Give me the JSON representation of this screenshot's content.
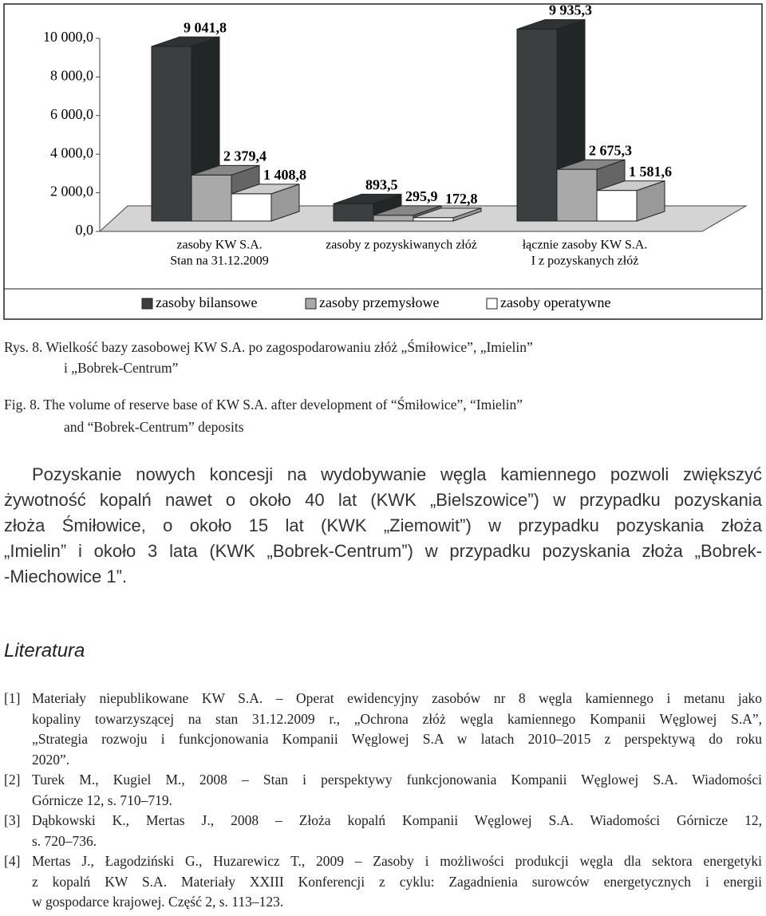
{
  "chart_data": {
    "type": "bar3d",
    "categories": [
      [
        "zasoby KW S.A.",
        "Stan na 31.12.2009"
      ],
      [
        "zasoby z pozyskiwanych złóż"
      ],
      [
        "łącznie zasoby KW S.A.",
        "I z pozyskanych złóż"
      ]
    ],
    "series": [
      {
        "name": "zasoby bilansowe",
        "color": "#3b3f3f",
        "values": [
          9041.8,
          893.5,
          9935.3
        ],
        "value_labels": [
          "9 041,8",
          "893,5",
          "9 935,3"
        ]
      },
      {
        "name": "zasoby przemysłowe",
        "color": "#a9a9a9",
        "values": [
          2379.4,
          295.9,
          2675.3
        ],
        "value_labels": [
          "2 379,4",
          "295,9",
          "2 675,3"
        ]
      },
      {
        "name": "zasoby operatywne",
        "color": "#ffffff",
        "values": [
          1408.8,
          172.8,
          1581.6
        ],
        "value_labels": [
          "1 408,8",
          "172,8",
          "1 581,6"
        ]
      }
    ],
    "ylim": [
      0,
      10000
    ],
    "yticks": [
      {
        "value": 0,
        "label": "0,0"
      },
      {
        "value": 2000,
        "label": "2 000,0"
      },
      {
        "value": 4000,
        "label": "4 000,0"
      },
      {
        "value": 6000,
        "label": "6 000,0"
      },
      {
        "value": 8000,
        "label": "8 000,0"
      },
      {
        "value": 10000,
        "label": "10 000,0"
      }
    ],
    "legend": "bottom"
  },
  "caption_pl": [
    "Rys. 8. Wielkość bazy zasobowej KW S.A. po zagospodarowaniu złóż „Śmiłowice”, „Imielin”",
    "i „Bobrek-Centrum”"
  ],
  "caption_en": [
    "Fig. 8. The volume of reserve base of KW S.A. after development of “Śmiłowice”, “Imielin”",
    "and “Bobrek-Centrum” deposits"
  ],
  "paragraph": [
    "Pozyskanie nowych koncesji na wydobywanie węgla kamiennego pozwoli zwiększyć",
    "żywotność kopalń nawet o około 40 lat (KWK „Bielszowice”) w przypadku pozyskania",
    "złoża Śmiłowice, o około 15 lat (KWK „Ziemowit”) w przypadku pozyskania złoża",
    "„Imielin” i około 3 lata (KWK „Bobrek-Centrum”) w przypadku pozyskania złoża „Bobrek-",
    "-Miechowice 1”."
  ],
  "section_title": "Literatura",
  "references": [
    {
      "number": "[1]",
      "lines": [
        "Materiały niepublikowane KW S.A. – Operat ewidencyjny zasobów nr 8 węgla kamiennego i metanu jako",
        "kopaliny towarzyszącej na stan 31.12.2009 r., „Ochrona złóż węgla kamiennego Kompanii Węglowej S.A”,",
        "„Strategia rozwoju i funkcjonowania Kompanii Węglowej S.A w latach 2010–2015 z perspektywą do roku",
        "2020”."
      ]
    },
    {
      "number": "[2]",
      "lines": [
        "Turek M., Kugiel M., 2008 – Stan i perspektywy funkcjonowania Kompanii Węglowej S.A. Wiadomości",
        "Górnicze 12, s. 710–719."
      ]
    },
    {
      "number": "[3]",
      "lines": [
        "Dąbkowski K., Mertas J., 2008 – Złoża kopalń Kompanii Węglowej S.A. Wiadomości Górnicze 12,",
        "s. 720–736."
      ]
    },
    {
      "number": "[4]",
      "lines": [
        "Mertas J., Łagodziński G., Huzarewicz T., 2009 – Zasoby i możliwości produkcji węgla dla sektora energetyki",
        "z kopalń KW S.A. Materiały XXIII Konferencji z cyklu: Zagadnienia surowców energetycznych i energii",
        "w gospodarce krajowej. Część 2, s. 113–123."
      ]
    }
  ]
}
